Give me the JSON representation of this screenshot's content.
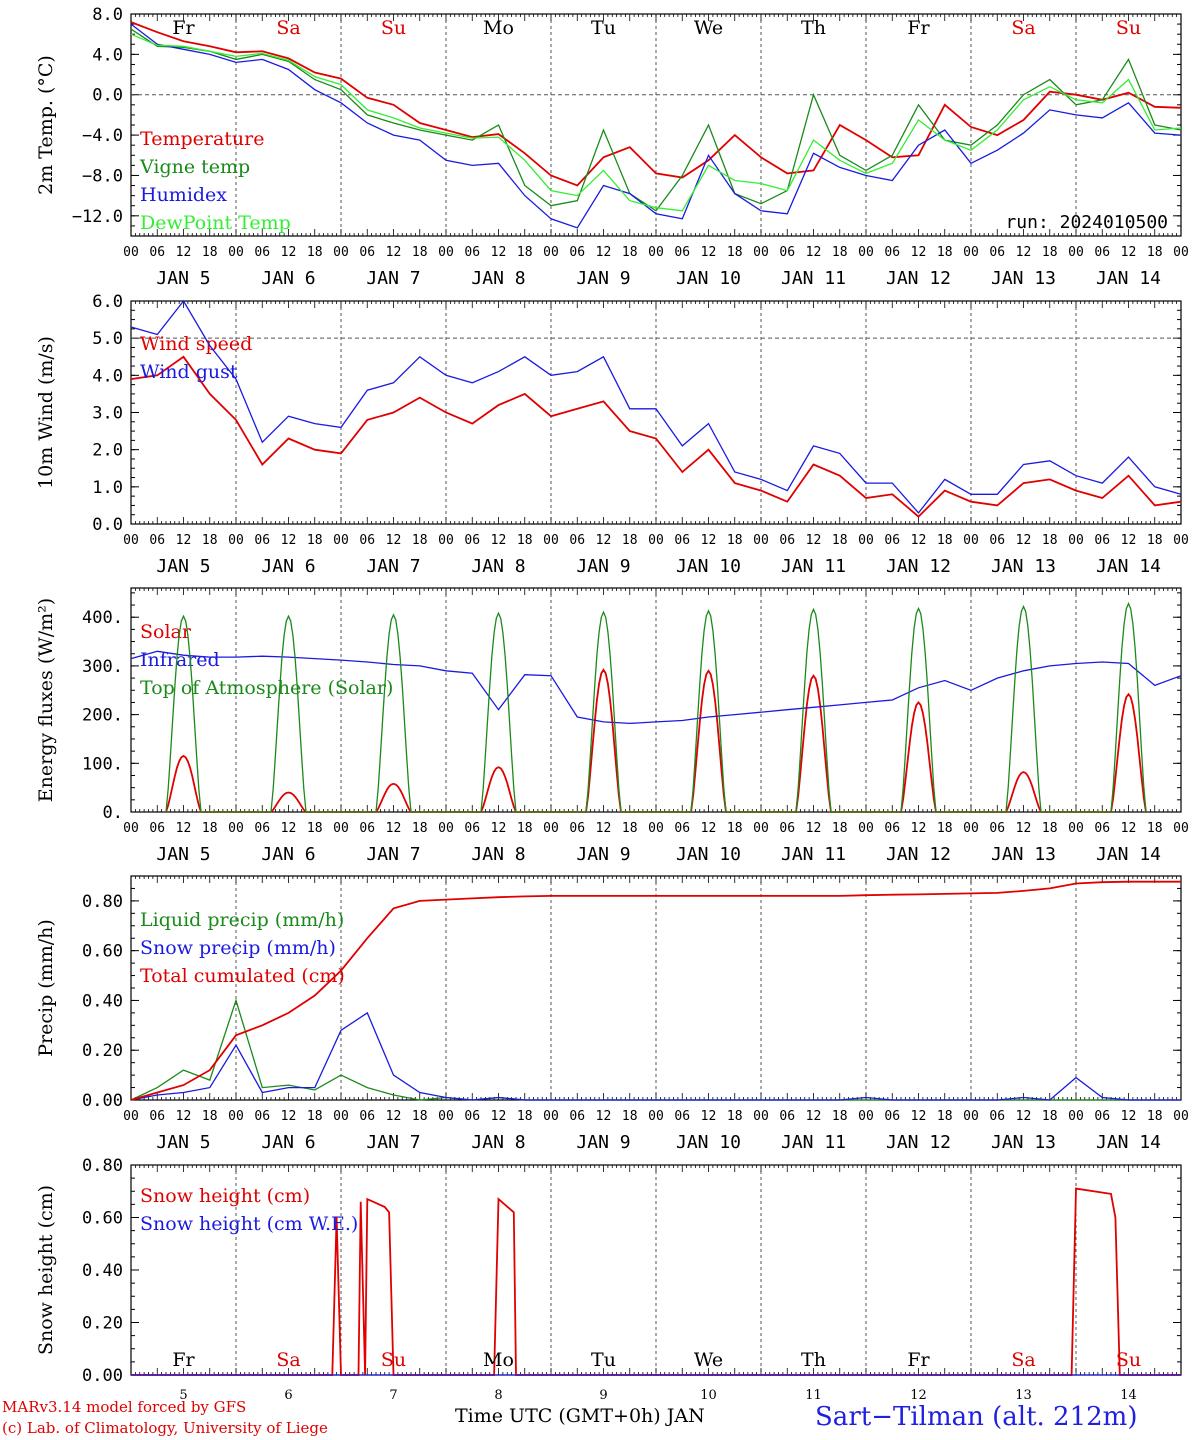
{
  "footer": {
    "model_line": "MARv3.14 model forced by GFS",
    "credit_line": "(c) Lab. of Climatology, University of Liege",
    "x_title": "Time UTC (GMT+0h) JAN",
    "station": "Sart−Tilman (alt. 212m)"
  },
  "colors": {
    "red": "#e00000",
    "blue": "#1a1ae0",
    "green": "#1a8a1a",
    "lightgreen": "#33ee33",
    "weekend": "#e00000",
    "weekday": "#000000"
  },
  "day_labels": [
    "Fr",
    "Sa",
    "Su",
    "Mo",
    "Tu",
    "We",
    "Th",
    "Fr",
    "Sa",
    "Su"
  ],
  "weekend_flags": [
    false,
    true,
    true,
    false,
    false,
    false,
    false,
    false,
    true,
    true
  ],
  "date_labels": [
    "JAN  5",
    "JAN  6",
    "JAN  7",
    "JAN  8",
    "JAN  9",
    "JAN 10",
    "JAN 11",
    "JAN 12",
    "JAN 13",
    "JAN 14"
  ],
  "hour_labels": [
    "00",
    "06",
    "12",
    "18"
  ],
  "bottom_day_numbers": [
    "5",
    "6",
    "7",
    "8",
    "9",
    "10",
    "11",
    "12",
    "13",
    "14"
  ],
  "chart_data": [
    {
      "type": "line",
      "ylabel": "2m Temp. (°C)",
      "ylim": [
        -14,
        8
      ],
      "yticks": [
        "8.0",
        "4.0",
        "0.0",
        "−4.0",
        "−8.0",
        "−12.0"
      ],
      "ytick_values": [
        8,
        4,
        0,
        -4,
        -8,
        -12
      ],
      "annotation": "run: 2024010500",
      "x_hours": [
        0,
        6,
        12,
        18,
        24,
        30,
        36,
        42,
        48,
        54,
        60,
        66,
        72,
        78,
        84,
        90,
        96,
        102,
        108,
        114,
        120,
        126,
        132,
        138,
        144,
        150,
        156,
        162,
        168,
        174,
        180,
        186,
        192,
        198,
        204,
        210,
        216,
        222,
        228,
        234,
        240
      ],
      "series": [
        {
          "name": "Temperature",
          "color": "red",
          "values": [
            7.2,
            6.2,
            5.3,
            4.8,
            4.2,
            4.3,
            3.6,
            2.2,
            1.6,
            -0.3,
            -1.0,
            -2.8,
            -3.5,
            -4.2,
            -3.9,
            -5.8,
            -8.0,
            -9.0,
            -6.2,
            -5.2,
            -7.8,
            -8.2,
            -6.5,
            -4.0,
            -6.2,
            -7.8,
            -7.5,
            -3.0,
            -4.5,
            -6.2,
            -6.0,
            -1.0,
            -3.2,
            -4.0,
            -2.5,
            0.3,
            0.0,
            -0.5,
            0.2,
            -1.2,
            -1.3
          ]
        },
        {
          "name": "Vigne temp",
          "color": "green",
          "values": [
            6.5,
            4.8,
            4.7,
            4.3,
            3.5,
            4.0,
            3.3,
            1.5,
            0.5,
            -2.0,
            -2.8,
            -3.5,
            -4.0,
            -4.5,
            -3.0,
            -9.0,
            -11.0,
            -10.5,
            -3.5,
            -9.8,
            -11.5,
            -8.0,
            -3.0,
            -9.8,
            -10.8,
            -9.5,
            0.0,
            -6.0,
            -7.5,
            -6.0,
            -1.0,
            -4.5,
            -5.0,
            -3.0,
            0.0,
            1.5,
            -1.0,
            -0.5,
            3.5,
            -3.0,
            -3.5
          ]
        },
        {
          "name": "Humidex",
          "color": "blue",
          "values": [
            7.0,
            5.0,
            4.5,
            4.0,
            3.2,
            3.5,
            2.5,
            0.5,
            -0.8,
            -2.8,
            -4.0,
            -4.5,
            -6.5,
            -7.0,
            -6.8,
            -10.0,
            -12.3,
            -13.2,
            -9.0,
            -9.8,
            -11.8,
            -12.3,
            -6.0,
            -9.8,
            -11.5,
            -11.8,
            -5.8,
            -7.2,
            -8.0,
            -8.5,
            -5.0,
            -3.5,
            -6.8,
            -5.5,
            -3.8,
            -1.5,
            -2.0,
            -2.3,
            -0.8,
            -3.8,
            -4.0
          ]
        },
        {
          "name": "DewPoint Temp",
          "color": "lightgreen",
          "values": [
            6.0,
            4.9,
            4.8,
            4.3,
            3.8,
            4.1,
            3.4,
            1.8,
            1.0,
            -1.5,
            -2.3,
            -3.3,
            -3.8,
            -4.3,
            -4.2,
            -6.5,
            -9.5,
            -10.0,
            -7.5,
            -10.5,
            -11.2,
            -11.5,
            -7.0,
            -8.5,
            -8.8,
            -9.5,
            -4.5,
            -6.5,
            -7.8,
            -6.8,
            -2.5,
            -4.5,
            -5.5,
            -3.5,
            -0.5,
            0.8,
            -0.5,
            -0.8,
            1.5,
            -3.5,
            -3.3
          ]
        }
      ]
    },
    {
      "type": "line",
      "ylabel": "10m Wind (m/s)",
      "ylim": [
        0,
        6
      ],
      "yticks": [
        "6.0",
        "5.0",
        "4.0",
        "3.0",
        "2.0",
        "1.0",
        "0.0"
      ],
      "ytick_values": [
        6,
        5,
        4,
        3,
        2,
        1,
        0
      ],
      "x_hours": [
        0,
        6,
        12,
        18,
        24,
        30,
        36,
        42,
        48,
        54,
        60,
        66,
        72,
        78,
        84,
        90,
        96,
        102,
        108,
        114,
        120,
        126,
        132,
        138,
        144,
        150,
        156,
        162,
        168,
        174,
        180,
        186,
        192,
        198,
        204,
        210,
        216,
        222,
        228,
        234,
        240
      ],
      "series": [
        {
          "name": "Wind speed",
          "color": "red",
          "values": [
            3.9,
            4.0,
            4.5,
            3.5,
            2.8,
            1.6,
            2.3,
            2.0,
            1.9,
            2.8,
            3.0,
            3.4,
            3.0,
            2.7,
            3.2,
            3.5,
            2.9,
            3.1,
            3.3,
            2.5,
            2.3,
            1.4,
            2.0,
            1.1,
            0.9,
            0.6,
            1.6,
            1.3,
            0.7,
            0.8,
            0.2,
            0.9,
            0.6,
            0.5,
            1.1,
            1.2,
            0.9,
            0.7,
            1.3,
            0.5,
            0.6
          ]
        },
        {
          "name": "Wind gust",
          "color": "blue",
          "values": [
            5.3,
            5.1,
            6.0,
            4.8,
            3.9,
            2.2,
            2.9,
            2.7,
            2.6,
            3.6,
            3.8,
            4.5,
            4.0,
            3.8,
            4.1,
            4.5,
            4.0,
            4.1,
            4.5,
            3.1,
            3.1,
            2.1,
            2.7,
            1.4,
            1.2,
            0.9,
            2.1,
            1.9,
            1.1,
            1.1,
            0.3,
            1.2,
            0.8,
            0.8,
            1.6,
            1.7,
            1.3,
            1.1,
            1.8,
            1.0,
            0.8
          ]
        }
      ]
    },
    {
      "type": "line",
      "ylabel": "Energy fluxes (W/m²)",
      "ylim": [
        0,
        460
      ],
      "yticks": [
        "400.",
        "300.",
        "200.",
        "100.",
        "0."
      ],
      "ytick_values": [
        400,
        300,
        200,
        100,
        0
      ],
      "series": [
        {
          "name": "Solar",
          "color": "red",
          "kind": "diurnal",
          "peaks": [
            115,
            40,
            58,
            92,
            292,
            290,
            280,
            225,
            82,
            242
          ]
        },
        {
          "name": "Infrared",
          "color": "blue",
          "x_hours": [
            0,
            6,
            12,
            18,
            24,
            30,
            36,
            42,
            48,
            54,
            60,
            66,
            72,
            78,
            84,
            90,
            96,
            102,
            108,
            114,
            120,
            126,
            132,
            138,
            144,
            150,
            156,
            162,
            168,
            174,
            180,
            186,
            192,
            198,
            204,
            210,
            216,
            222,
            228,
            234,
            240
          ],
          "values": [
            315,
            330,
            322,
            318,
            318,
            320,
            318,
            315,
            312,
            308,
            303,
            300,
            290,
            285,
            210,
            282,
            280,
            195,
            185,
            182,
            185,
            188,
            195,
            200,
            205,
            210,
            215,
            220,
            225,
            230,
            255,
            270,
            250,
            275,
            290,
            300,
            305,
            308,
            305,
            260,
            280
          ]
        },
        {
          "name": "Top of Atmosphere (Solar)",
          "color": "green",
          "kind": "diurnal",
          "peaks": [
            402,
            402,
            405,
            408,
            410,
            413,
            416,
            418,
            422,
            428
          ]
        }
      ]
    },
    {
      "type": "line",
      "ylabel": "Precip (mm/h)",
      "ylim": [
        0,
        0.9
      ],
      "yticks": [
        "0.80",
        "0.60",
        "0.40",
        "0.20",
        "0.00"
      ],
      "ytick_values": [
        0.8,
        0.6,
        0.4,
        0.2,
        0.0
      ],
      "x_hours": [
        0,
        6,
        12,
        18,
        24,
        30,
        36,
        42,
        48,
        54,
        60,
        66,
        72,
        78,
        84,
        90,
        96,
        102,
        108,
        114,
        120,
        126,
        132,
        138,
        144,
        150,
        156,
        162,
        168,
        174,
        180,
        186,
        192,
        198,
        204,
        210,
        216,
        222,
        228,
        234,
        240
      ],
      "series": [
        {
          "name": "Liquid precip (mm/h)",
          "color": "green",
          "values": [
            0.0,
            0.05,
            0.12,
            0.08,
            0.4,
            0.05,
            0.06,
            0.04,
            0.1,
            0.05,
            0.02,
            0.0,
            0.01,
            0.0,
            0.01,
            0.0,
            0.0,
            0.0,
            0.0,
            0.0,
            0.0,
            0.0,
            0.0,
            0.0,
            0.0,
            0.0,
            0.0,
            0.0,
            0.0,
            0.0,
            0.0,
            0.0,
            0.0,
            0.0,
            0.0,
            0.0,
            0.0,
            0.0,
            0.0,
            0.0,
            0.0
          ]
        },
        {
          "name": "Snow precip (mm/h)",
          "color": "blue",
          "values": [
            0.0,
            0.02,
            0.03,
            0.05,
            0.22,
            0.03,
            0.05,
            0.05,
            0.28,
            0.35,
            0.1,
            0.03,
            0.01,
            0.0,
            0.01,
            0.0,
            0.0,
            0.0,
            0.0,
            0.0,
            0.0,
            0.0,
            0.0,
            0.0,
            0.0,
            0.0,
            0.0,
            0.0,
            0.01,
            0.0,
            0.0,
            0.0,
            0.0,
            0.0,
            0.01,
            0.0,
            0.09,
            0.01,
            0.0,
            0.0,
            0.0
          ]
        },
        {
          "name": "Total cumulated (cm)",
          "color": "red",
          "values": [
            0.0,
            0.03,
            0.06,
            0.12,
            0.26,
            0.3,
            0.35,
            0.42,
            0.52,
            0.65,
            0.77,
            0.8,
            0.805,
            0.81,
            0.815,
            0.818,
            0.82,
            0.82,
            0.82,
            0.82,
            0.82,
            0.82,
            0.82,
            0.82,
            0.82,
            0.82,
            0.82,
            0.82,
            0.823,
            0.825,
            0.826,
            0.828,
            0.83,
            0.832,
            0.84,
            0.85,
            0.87,
            0.875,
            0.877,
            0.877,
            0.877
          ]
        }
      ]
    },
    {
      "type": "line",
      "ylabel": "Snow height (cm)",
      "ylim": [
        0,
        0.8
      ],
      "yticks": [
        "0.80",
        "0.60",
        "0.40",
        "0.20",
        "0.00"
      ],
      "ytick_values": [
        0.8,
        0.6,
        0.4,
        0.2,
        0.0
      ],
      "series": [
        {
          "name": "Snow height (cm)",
          "color": "red",
          "points": [
            [
              0,
              0
            ],
            [
              46,
              0
            ],
            [
              47,
              0.6
            ],
            [
              48,
              0
            ],
            [
              52,
              0
            ],
            [
              52.5,
              0.66
            ],
            [
              53.5,
              0
            ],
            [
              54,
              0.67
            ],
            [
              58,
              0.64
            ],
            [
              59,
              0.62
            ],
            [
              60,
              0
            ],
            [
              83,
              0
            ],
            [
              84,
              0.67
            ],
            [
              87.5,
              0.62
            ],
            [
              88,
              0
            ],
            [
              215,
              0
            ],
            [
              216,
              0.71
            ],
            [
              224,
              0.69
            ],
            [
              225,
              0.6
            ],
            [
              226,
              0
            ],
            [
              240,
              0
            ]
          ]
        },
        {
          "name": "Snow height (cm W.E.)",
          "color": "blue",
          "points": [
            [
              0,
              0
            ],
            [
              240,
              0
            ]
          ]
        }
      ]
    }
  ]
}
